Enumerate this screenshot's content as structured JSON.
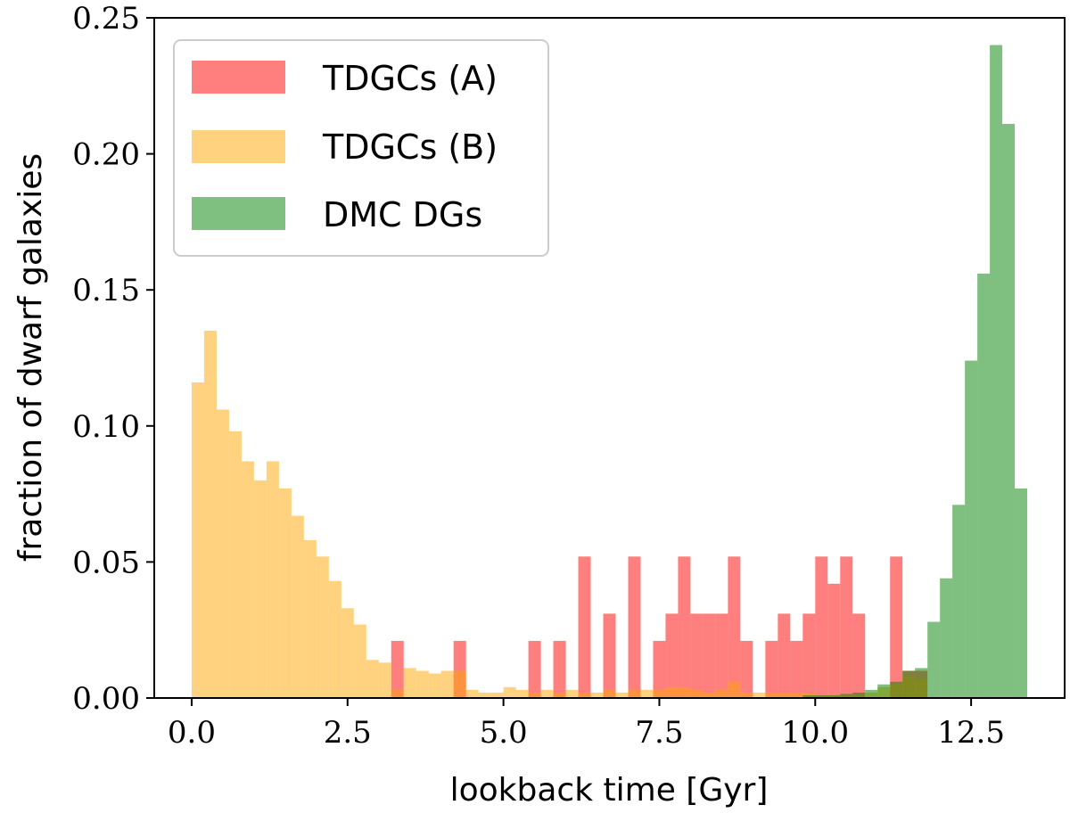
{
  "chart_data": {
    "type": "bar",
    "subtype": "histogram",
    "title": "",
    "xlabel": "lookback time [Gyr]",
    "ylabel": "fraction of dwarf galaxies",
    "xlim": [
      -0.6,
      14.0
    ],
    "ylim": [
      0.0,
      0.25
    ],
    "xticks": [
      0.0,
      2.5,
      5.0,
      7.5,
      10.0,
      12.5
    ],
    "xtick_labels": [
      "0.0",
      "2.5",
      "5.0",
      "7.5",
      "10.0",
      "12.5"
    ],
    "yticks": [
      0.0,
      0.05,
      0.1,
      0.15,
      0.2,
      0.25
    ],
    "ytick_labels": [
      "0.00",
      "0.05",
      "0.10",
      "0.15",
      "0.20",
      "0.25"
    ],
    "bin_start": 0.0,
    "bin_width": 0.2,
    "legend_position": "top-left",
    "grid": false,
    "series": [
      {
        "name": "TDGCs (A)",
        "color": "#ff0000",
        "opacity": 0.5,
        "bins": [
          {
            "x": 3.2,
            "value": 0.021
          },
          {
            "x": 4.2,
            "value": 0.021
          },
          {
            "x": 5.4,
            "value": 0.021
          },
          {
            "x": 5.8,
            "value": 0.021
          },
          {
            "x": 6.2,
            "value": 0.052
          },
          {
            "x": 6.6,
            "value": 0.031
          },
          {
            "x": 7.0,
            "value": 0.052
          },
          {
            "x": 7.4,
            "value": 0.021
          },
          {
            "x": 7.6,
            "value": 0.031
          },
          {
            "x": 7.8,
            "value": 0.052
          },
          {
            "x": 8.0,
            "value": 0.031
          },
          {
            "x": 8.2,
            "value": 0.031
          },
          {
            "x": 8.4,
            "value": 0.031
          },
          {
            "x": 8.6,
            "value": 0.052
          },
          {
            "x": 8.8,
            "value": 0.021
          },
          {
            "x": 9.2,
            "value": 0.021
          },
          {
            "x": 9.4,
            "value": 0.031
          },
          {
            "x": 9.6,
            "value": 0.021
          },
          {
            "x": 9.8,
            "value": 0.031
          },
          {
            "x": 10.0,
            "value": 0.052
          },
          {
            "x": 10.2,
            "value": 0.042
          },
          {
            "x": 10.4,
            "value": 0.052
          },
          {
            "x": 10.6,
            "value": 0.031
          },
          {
            "x": 11.2,
            "value": 0.052
          },
          {
            "x": 11.4,
            "value": 0.01
          },
          {
            "x": 11.6,
            "value": 0.01
          }
        ]
      },
      {
        "name": "TDGCs (B)",
        "color": "#ffa500",
        "opacity": 0.5,
        "bins": [
          {
            "x": 0.0,
            "value": 0.116
          },
          {
            "x": 0.2,
            "value": 0.135
          },
          {
            "x": 0.4,
            "value": 0.106
          },
          {
            "x": 0.6,
            "value": 0.098
          },
          {
            "x": 0.8,
            "value": 0.087
          },
          {
            "x": 1.0,
            "value": 0.08
          },
          {
            "x": 1.2,
            "value": 0.087
          },
          {
            "x": 1.4,
            "value": 0.077
          },
          {
            "x": 1.6,
            "value": 0.067
          },
          {
            "x": 1.8,
            "value": 0.058
          },
          {
            "x": 2.0,
            "value": 0.052
          },
          {
            "x": 2.2,
            "value": 0.043
          },
          {
            "x": 2.4,
            "value": 0.033
          },
          {
            "x": 2.6,
            "value": 0.027
          },
          {
            "x": 2.8,
            "value": 0.014
          },
          {
            "x": 3.0,
            "value": 0.013
          },
          {
            "x": 3.2,
            "value": 0.003
          },
          {
            "x": 3.4,
            "value": 0.011
          },
          {
            "x": 3.6,
            "value": 0.01
          },
          {
            "x": 3.8,
            "value": 0.009
          },
          {
            "x": 4.0,
            "value": 0.01
          },
          {
            "x": 4.2,
            "value": 0.01
          },
          {
            "x": 4.4,
            "value": 0.003
          },
          {
            "x": 4.6,
            "value": 0.002
          },
          {
            "x": 4.8,
            "value": 0.002
          },
          {
            "x": 5.0,
            "value": 0.004
          },
          {
            "x": 5.2,
            "value": 0.003
          },
          {
            "x": 5.4,
            "value": 0.002
          },
          {
            "x": 5.6,
            "value": 0.003
          },
          {
            "x": 5.8,
            "value": 0.002
          },
          {
            "x": 6.0,
            "value": 0.003
          },
          {
            "x": 6.2,
            "value": 0.002
          },
          {
            "x": 6.4,
            "value": 0.002
          },
          {
            "x": 6.6,
            "value": 0.003
          },
          {
            "x": 6.8,
            "value": 0.002
          },
          {
            "x": 7.0,
            "value": 0.003
          },
          {
            "x": 7.2,
            "value": 0.003
          },
          {
            "x": 7.4,
            "value": 0.003
          },
          {
            "x": 7.6,
            "value": 0.004
          },
          {
            "x": 7.8,
            "value": 0.004
          },
          {
            "x": 8.0,
            "value": 0.003
          },
          {
            "x": 8.2,
            "value": 0.002
          },
          {
            "x": 8.4,
            "value": 0.003
          },
          {
            "x": 8.6,
            "value": 0.006
          },
          {
            "x": 8.8,
            "value": 0.002
          },
          {
            "x": 9.0,
            "value": 0.002
          },
          {
            "x": 9.2,
            "value": 0.002
          },
          {
            "x": 9.4,
            "value": 0.002
          },
          {
            "x": 9.6,
            "value": 0.002
          },
          {
            "x": 9.8,
            "value": 0.002
          },
          {
            "x": 10.0,
            "value": 0.001
          },
          {
            "x": 10.2,
            "value": 0.001
          },
          {
            "x": 10.4,
            "value": 0.001
          },
          {
            "x": 10.6,
            "value": 0.001
          },
          {
            "x": 10.8,
            "value": 0.002
          },
          {
            "x": 11.0,
            "value": 0.004
          },
          {
            "x": 11.2,
            "value": 0.005
          },
          {
            "x": 11.4,
            "value": 0.008
          },
          {
            "x": 11.6,
            "value": 0.007
          }
        ]
      },
      {
        "name": "DMC DGs",
        "color": "#008000",
        "opacity": 0.5,
        "bins": [
          {
            "x": 9.8,
            "value": 0.001
          },
          {
            "x": 10.0,
            "value": 0.001
          },
          {
            "x": 10.2,
            "value": 0.001
          },
          {
            "x": 10.4,
            "value": 0.0015
          },
          {
            "x": 10.6,
            "value": 0.002
          },
          {
            "x": 10.8,
            "value": 0.003
          },
          {
            "x": 11.0,
            "value": 0.005
          },
          {
            "x": 11.2,
            "value": 0.006
          },
          {
            "x": 11.4,
            "value": 0.01
          },
          {
            "x": 11.6,
            "value": 0.011
          },
          {
            "x": 11.8,
            "value": 0.028
          },
          {
            "x": 12.0,
            "value": 0.044
          },
          {
            "x": 12.2,
            "value": 0.071
          },
          {
            "x": 12.4,
            "value": 0.124
          },
          {
            "x": 12.6,
            "value": 0.156
          },
          {
            "x": 12.8,
            "value": 0.24
          },
          {
            "x": 13.0,
            "value": 0.211
          },
          {
            "x": 13.2,
            "value": 0.077
          }
        ]
      }
    ]
  }
}
